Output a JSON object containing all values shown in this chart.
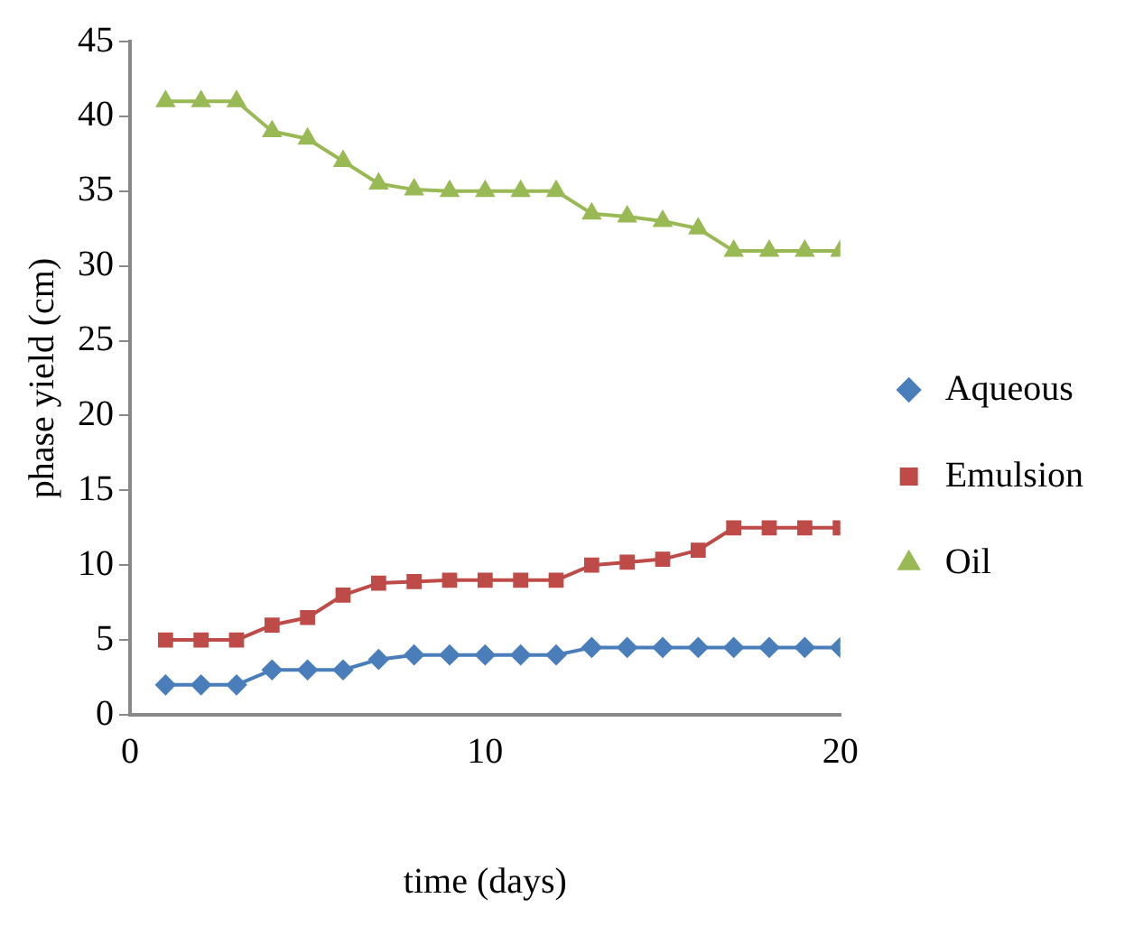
{
  "chart_data": {
    "type": "line",
    "xlabel": "time (days)",
    "ylabel": "phase yield (cm)",
    "x": [
      1,
      2,
      3,
      4,
      5,
      6,
      7,
      8,
      9,
      10,
      11,
      12,
      13,
      14,
      15,
      16,
      17,
      18,
      19,
      20
    ],
    "series": [
      {
        "name": "Aqueous",
        "color": "#4a7ebb",
        "marker": "diamond",
        "values": [
          2,
          2,
          2,
          3,
          3,
          3,
          3.7,
          4,
          4,
          4,
          4,
          4,
          4.5,
          4.5,
          4.5,
          4.5,
          4.5,
          4.5,
          4.5,
          4.5
        ]
      },
      {
        "name": "Emulsion",
        "color": "#be4b48",
        "marker": "square",
        "values": [
          5,
          5,
          5,
          6,
          6.5,
          8,
          8.8,
          8.9,
          9,
          9,
          9,
          9,
          10,
          10.2,
          10.4,
          11,
          12.5,
          12.5,
          12.5,
          12.5
        ]
      },
      {
        "name": "Oil",
        "color": "#98b954",
        "marker": "triangle",
        "values": [
          41,
          41,
          41,
          39,
          38.5,
          37,
          35.5,
          35.1,
          35,
          35,
          35,
          35,
          33.5,
          33.3,
          33,
          32.5,
          31,
          31,
          31,
          31
        ]
      }
    ],
    "xlim": [
      0,
      20
    ],
    "xticks": [
      0,
      10,
      20
    ],
    "ylim": [
      0,
      45
    ],
    "yticks": [
      0,
      5,
      10,
      15,
      20,
      25,
      30,
      35,
      40,
      45
    ],
    "grid": false,
    "legend": "right",
    "line_style": "solid"
  }
}
